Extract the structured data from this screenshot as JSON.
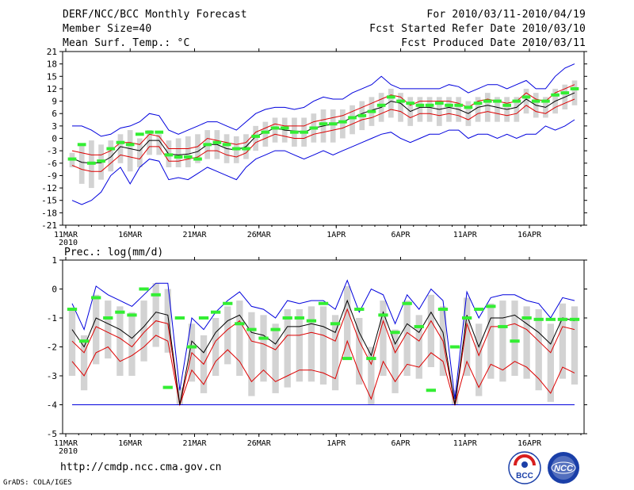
{
  "header": {
    "title": "DERF/NCC/BCC Monthly Forecast",
    "member_size": "Member Size=40",
    "variable": "Mean Surf. Temp.: °C",
    "period": "For 2010/03/11-2010/04/19",
    "started": "Fcst Started Refer Date 2010/03/10",
    "produced": "Fcst Produced Date 2010/03/11"
  },
  "footer": {
    "url": "http://cmdp.ncc.cma.gov.cn",
    "credit": "GrADS: COLA/IGES",
    "logo1_text": "BCC",
    "logo2_text": "NCC"
  },
  "colors": {
    "box": "#d3d3d3",
    "obs": "#33ee33",
    "mean": "#000000",
    "inner": "#dd0000",
    "outer": "#0000dd",
    "zeroline": "#0000aa"
  },
  "chart_data": [
    {
      "type": "line",
      "title": "Mean Surf. Temp.: °C",
      "ylabel": "°C",
      "ylim": [
        -21,
        21
      ],
      "yticks": [
        -21,
        -18,
        -15,
        -12,
        -9,
        -6,
        -3,
        0,
        3,
        6,
        9,
        12,
        15,
        18,
        21
      ],
      "x_tick_labels": [
        "11MAR",
        "16MAR",
        "21MAR",
        "26MAR",
        "1APR",
        "6APR",
        "11APR",
        "16APR"
      ],
      "x_tick_days": [
        0,
        5,
        10,
        15,
        21,
        26,
        31,
        36
      ],
      "year_label": "2010",
      "days": 40,
      "series": [
        {
          "name": "ensemble-mean",
          "values": [
            -4.8,
            -5.8,
            -6,
            -5.9,
            -4.5,
            -2,
            -2.5,
            -3,
            -0.5,
            -0.5,
            -3.8,
            -4,
            -3.8,
            -3.2,
            -1.5,
            -1.5,
            -2.5,
            -2.8,
            -2,
            0.5,
            1.5,
            2.5,
            2,
            1.8,
            1.5,
            2.5,
            3,
            3.5,
            4,
            5,
            6,
            6.8,
            7.5,
            9,
            8.5,
            6.5,
            7.5,
            7.5,
            7,
            7.5,
            7,
            6,
            7.5,
            8,
            7.5,
            7,
            7.5,
            9.5,
            8,
            7.5,
            9,
            10,
            11
          ]
        },
        {
          "name": "upper-outer",
          "values": [
            3,
            3,
            2,
            0.5,
            1,
            2.5,
            3,
            4,
            6,
            5.5,
            2,
            1,
            2,
            3,
            4,
            4,
            3,
            2,
            4,
            6,
            7,
            7.5,
            7.5,
            7,
            7.5,
            9,
            10,
            9.5,
            9.5,
            11,
            12,
            13,
            15,
            13,
            12,
            12,
            12,
            12,
            12,
            13,
            12.5,
            11,
            12,
            13,
            13,
            12,
            13,
            14,
            12,
            12,
            15,
            17,
            18
          ]
        },
        {
          "name": "upper-inner",
          "values": [
            -3,
            -3.5,
            -4,
            -4,
            -3,
            -1,
            -1,
            -1.5,
            1,
            0.5,
            -2.5,
            -2.5,
            -2.5,
            -2,
            0,
            -0.5,
            -1,
            -1.5,
            -1,
            1.5,
            2.5,
            3.5,
            3,
            3,
            3,
            4,
            4.5,
            5,
            5.5,
            6.5,
            7.5,
            8.5,
            9.5,
            10.5,
            10,
            8,
            9,
            9,
            9,
            9,
            8.5,
            7.5,
            9,
            9.5,
            9,
            8.5,
            9,
            11,
            9.5,
            9,
            11,
            12,
            13
          ]
        },
        {
          "name": "lower-inner",
          "values": [
            -6.5,
            -7.5,
            -8,
            -8,
            -6,
            -4,
            -4.5,
            -5,
            -2,
            -2,
            -5.5,
            -5.5,
            -5,
            -4.5,
            -3,
            -3,
            -4,
            -4.5,
            -3.5,
            -1,
            0,
            1,
            0.5,
            0,
            0,
            1,
            1.5,
            2,
            2.5,
            3.5,
            4.5,
            5,
            6,
            7,
            6.5,
            5,
            6,
            6,
            5.5,
            6,
            5.5,
            4.5,
            6,
            6.5,
            6,
            5.5,
            6,
            8,
            6.5,
            6,
            7.5,
            8.5,
            9.5
          ]
        },
        {
          "name": "lower-outer",
          "values": [
            -15,
            -16,
            -15,
            -13,
            -9,
            -7,
            -11,
            -7,
            -5,
            -5.5,
            -10,
            -9.5,
            -10,
            -8.5,
            -7,
            -8,
            -9,
            -10,
            -7,
            -5,
            -4,
            -3,
            -3,
            -4,
            -5,
            -4,
            -3,
            -4,
            -3,
            -2,
            -1,
            0,
            1,
            1.5,
            0,
            -1,
            0,
            1,
            1,
            2,
            2,
            0,
            1,
            1,
            0,
            1,
            0,
            1,
            1,
            3,
            2,
            3,
            4.5
          ]
        },
        {
          "name": "box-top",
          "values": [
            -3.5,
            -1.5,
            -0.5,
            -1.5,
            -0.5,
            1,
            2,
            0,
            2,
            1,
            -0.5,
            0,
            0.5,
            1,
            2,
            2,
            1,
            0.5,
            1,
            3,
            4,
            5,
            5,
            5,
            5,
            6,
            7,
            7,
            7,
            8,
            9,
            10,
            11,
            12,
            11,
            10,
            10,
            10,
            10,
            10,
            10,
            9,
            10,
            11,
            10,
            10,
            10,
            12,
            11,
            10,
            12,
            13,
            14
          ]
        },
        {
          "name": "box-bottom",
          "values": [
            -7,
            -11,
            -12,
            -10,
            -8,
            -6,
            -8,
            -7,
            -4,
            -4,
            -7,
            -7,
            -7,
            -6,
            -5,
            -5,
            -6,
            -6,
            -5,
            -3,
            -2,
            -1,
            -1,
            -2,
            -2,
            -1,
            -1,
            -1,
            0,
            1,
            2,
            3,
            4,
            5,
            4,
            3,
            4,
            4,
            3,
            4,
            4,
            3,
            4,
            4,
            4,
            4,
            4,
            6,
            5,
            5,
            6,
            7,
            8
          ]
        },
        {
          "name": "observed",
          "values": [
            -5,
            -1.5,
            -6,
            -5.5,
            -2.5,
            -1,
            -1.5,
            1,
            1.5,
            1.5,
            -4,
            -4.5,
            -4.5,
            -5,
            -1.5,
            -1,
            -1.5,
            -2.5,
            -2.5,
            0.5,
            1.5,
            2.5,
            2.5,
            1.5,
            1.5,
            2.5,
            3.5,
            3.5,
            4,
            5,
            5.5,
            6.5,
            8,
            10,
            9,
            8.5,
            8,
            8,
            8.5,
            8,
            8,
            7.5,
            8.5,
            9,
            9,
            8,
            9,
            10,
            9,
            9,
            10.5,
            11,
            12
          ]
        }
      ]
    },
    {
      "type": "line",
      "title": "Prec.: log(mm/d)",
      "ylabel": "log(mm/d)",
      "ylim": [
        -5,
        1
      ],
      "yticks": [
        -5,
        -4,
        -3,
        -2,
        -1,
        0,
        1
      ],
      "x_tick_labels": [
        "11MAR",
        "16MAR",
        "21MAR",
        "26MAR",
        "1APR",
        "6APR",
        "11APR",
        "16APR"
      ],
      "x_tick_days": [
        0,
        5,
        10,
        15,
        21,
        26,
        31,
        36
      ],
      "year_label": "2010",
      "days": 40,
      "baseline": -4,
      "series": [
        {
          "name": "ensemble-mean",
          "values": [
            -1.4,
            -2,
            -1,
            -1.2,
            -1.4,
            -1.7,
            -1.3,
            -0.8,
            -0.9,
            -4,
            -1.8,
            -2.2,
            -1.5,
            -1.1,
            -0.9,
            -1.5,
            -1.6,
            -1.9,
            -1.3,
            -1.3,
            -1.2,
            -1.3,
            -1.5,
            -0.4,
            -1.5,
            -2.3,
            -0.8,
            -1.9,
            -1.2,
            -1.5,
            -0.8,
            -1.5,
            -4,
            -0.9,
            -2,
            -1,
            -1,
            -0.9,
            -1.2,
            -1.5,
            -1.9,
            -1,
            -1.1
          ]
        },
        {
          "name": "upper-outer",
          "values": [
            -0.5,
            -1.4,
            0.1,
            -0.2,
            -0.4,
            -0.6,
            -0.2,
            0.2,
            0.2,
            -3.5,
            -1,
            -1.4,
            -0.8,
            -0.4,
            -0.1,
            -0.6,
            -0.7,
            -1,
            -0.4,
            -0.5,
            -0.4,
            -0.4,
            -0.7,
            0.3,
            -0.8,
            0,
            -0.2,
            -1.2,
            -0.2,
            -0.7,
            0,
            -0.4,
            -3.8,
            -0.1,
            -1,
            -0.3,
            -0.2,
            -0.2,
            -0.4,
            -0.5,
            -1,
            -0.3,
            -0.4
          ]
        },
        {
          "name": "upper-inner",
          "values": [
            -1.8,
            -2.2,
            -1.3,
            -1.5,
            -1.7,
            -2,
            -1.5,
            -1.1,
            -1.2,
            -4,
            -2.2,
            -2.6,
            -1.8,
            -1.4,
            -1.1,
            -1.8,
            -1.9,
            -2.1,
            -1.6,
            -1.6,
            -1.5,
            -1.6,
            -1.8,
            -0.7,
            -1.8,
            -2.6,
            -1.1,
            -2.2,
            -1.5,
            -1.8,
            -1.1,
            -1.8,
            -4,
            -1.2,
            -2.3,
            -1.3,
            -1.3,
            -1.2,
            -1.4,
            -1.8,
            -2.2,
            -1.3,
            -1.4
          ]
        },
        {
          "name": "lower-inner",
          "values": [
            -2.5,
            -3,
            -2.2,
            -2,
            -2.5,
            -2.3,
            -2,
            -1.6,
            -1.8,
            -4,
            -2.8,
            -3.3,
            -2.5,
            -2.1,
            -2.5,
            -3.2,
            -2.8,
            -3.2,
            -3,
            -2.8,
            -2.8,
            -2.9,
            -3.1,
            -1.8,
            -2.9,
            -3.8,
            -2.5,
            -3.2,
            -2.6,
            -2.7,
            -2.2,
            -2.5,
            -4,
            -2.5,
            -3.4,
            -2.6,
            -2.8,
            -2.5,
            -2.7,
            -3.1,
            -3.6,
            -2.7,
            -2.9
          ]
        },
        {
          "name": "lower-outer",
          "values": [
            -4,
            -4,
            -4,
            -4,
            -4,
            -4,
            -4,
            -4,
            -4,
            -4,
            -4,
            -4,
            -4,
            -4,
            -4,
            -4,
            -4,
            -4,
            -4,
            -4,
            -4,
            -4,
            -4,
            -4,
            -4,
            -4,
            -4,
            -4,
            -4,
            -4,
            -4,
            -4,
            -4,
            -4,
            -4,
            -4,
            -4,
            -4,
            -4,
            -4,
            -4,
            -4,
            -4
          ]
        },
        {
          "name": "box-top",
          "values": [
            -0.7,
            -1.6,
            -0.2,
            -0.4,
            -0.6,
            -0.8,
            -0.4,
            0.2,
            0,
            -3.4,
            -1.2,
            -1.6,
            -1,
            -0.6,
            -0.4,
            -0.8,
            -0.9,
            -1.2,
            -0.7,
            -0.7,
            -0.6,
            -0.6,
            -0.9,
            0.1,
            -1,
            -2,
            -0.4,
            -1.4,
            -0.4,
            -0.9,
            -0.2,
            -0.6,
            -3.5,
            -0.3,
            -1.2,
            -0.5,
            -0.4,
            -0.4,
            -0.6,
            -0.7,
            -1.2,
            -0.5,
            -0.6
          ]
        },
        {
          "name": "box-bottom",
          "values": [
            -3,
            -3.5,
            -2.6,
            -2.4,
            -3,
            -3,
            -2.5,
            -2,
            -2.2,
            -4,
            -3.2,
            -3.6,
            -3,
            -2.6,
            -3,
            -3.7,
            -3.2,
            -3.6,
            -3.4,
            -3.2,
            -3.2,
            -3.3,
            -3.5,
            -2.4,
            -3.3,
            -4,
            -3,
            -3.6,
            -3,
            -3.1,
            -2.7,
            -3,
            -4,
            -3,
            -3.7,
            -3.1,
            -3.2,
            -3,
            -3.1,
            -3.5,
            -3.9,
            -3.1,
            -3.3
          ]
        },
        {
          "name": "observed",
          "values": [
            -0.7,
            -1.8,
            -0.3,
            -1,
            -0.8,
            -0.9,
            0,
            -0.2,
            -3.4,
            -1,
            -2,
            -1,
            -0.8,
            -0.5,
            -1.2,
            -1.4,
            -1.7,
            -1.4,
            -1,
            -1,
            -1.1,
            -0.5,
            -1.2,
            -2.4,
            -0.7,
            -2.4,
            -0.9,
            -1.5,
            -0.5,
            -1.3,
            -3.5,
            -0.7,
            -2,
            -1,
            -0.7,
            -0.6,
            -1.3,
            -1.8,
            -1,
            -1.05,
            -1.05,
            -1.05,
            -1.05
          ]
        }
      ]
    }
  ]
}
